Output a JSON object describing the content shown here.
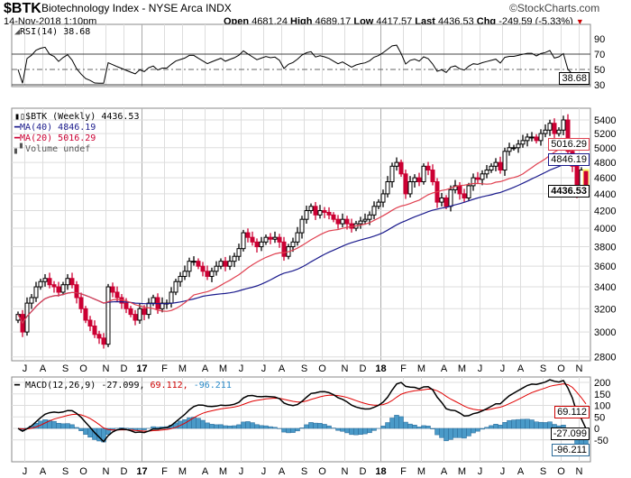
{
  "header": {
    "symbol": "$BTK",
    "name": "Biotechnology Index - NYSE Arca INDX",
    "brand": "©StockCharts.com",
    "datetime": "14-Nov-2018 1:10pm",
    "open_label": "Open",
    "open": "4681.24",
    "high_label": "High",
    "high": "4689.17",
    "low_label": "Low",
    "low": "4417.57",
    "last_label": "Last",
    "last": "4436.53",
    "chg_label": "Chg",
    "chg": "-249.59 (-5.33%)"
  },
  "rsi": {
    "legend": "RSI(14) 38.68",
    "value_tag": "38.68",
    "ticks": [
      "90",
      "70",
      "50",
      "30"
    ]
  },
  "price": {
    "legend": "$BTK (Weekly) 4436.53",
    "ma40": "MA(40) 4846.19",
    "ma20": "MA(20) 5016.29",
    "volume": "Volume undef",
    "tag_ma20": "5016.29",
    "tag_ma40": "4846.19",
    "tag_last": "4436.53"
  },
  "macd": {
    "legend_name": "MACD(12,26,9) -27.099,",
    "legend_signal": " 69.112,",
    "legend_hist": " -96.211",
    "tag_signal": "69.112",
    "tag_macd": "-27.099",
    "tag_hist": "-96.211",
    "ticks": [
      "200",
      "150",
      "100",
      "50",
      "0",
      "-50"
    ]
  },
  "colors": {
    "up": "#ffffff",
    "down": "#cc0033",
    "ma20": "#e04050",
    "ma40": "#1a1a8c",
    "hist": "#4a9ac8"
  },
  "chart_data": {
    "type": "candlestick",
    "title": "$BTK Biotechnology Index - NYSE Arca INDX (Weekly)",
    "scale": "log",
    "ylim": [
      2800,
      5500
    ],
    "yticks": [
      "5400",
      "5200",
      "5000",
      "4800",
      "4600",
      "4400",
      "4200",
      "4000",
      "3800",
      "3600",
      "3400",
      "3200",
      "3000",
      "2800"
    ],
    "months": [
      "J",
      "A",
      "S",
      "O",
      "N",
      "D",
      "17",
      "F",
      "M",
      "A",
      "M",
      "J",
      "J",
      "A",
      "S",
      "O",
      "N",
      "D",
      "18",
      "F",
      "M",
      "A",
      "M",
      "J",
      "J",
      "A",
      "S",
      "O",
      "N"
    ],
    "month_weeks": [
      3,
      7,
      12,
      16,
      21,
      25,
      29,
      34,
      38,
      43,
      47,
      51,
      56,
      60,
      65,
      69,
      74,
      78,
      82,
      87,
      91,
      96,
      100,
      104,
      109,
      113,
      118,
      122,
      126
    ],
    "weekly_close": [
      3150,
      3000,
      3250,
      3300,
      3400,
      3450,
      3480,
      3420,
      3400,
      3350,
      3420,
      3480,
      3420,
      3300,
      3200,
      3100,
      3050,
      2980,
      2950,
      2900,
      3400,
      3350,
      3300,
      3250,
      3200,
      3150,
      3100,
      3200,
      3150,
      3250,
      3300,
      3200,
      3250,
      3250,
      3350,
      3450,
      3500,
      3550,
      3650,
      3650,
      3600,
      3550,
      3500,
      3550,
      3600,
      3650,
      3600,
      3650,
      3700,
      3780,
      3950,
      3900,
      3850,
      3800,
      3850,
      3900,
      3880,
      3900,
      3850,
      3700,
      3800,
      3850,
      3950,
      4100,
      4200,
      4250,
      4150,
      4200,
      4180,
      4150,
      4100,
      4050,
      4100,
      4050,
      4000,
      4050,
      4080,
      4100,
      4150,
      4250,
      4300,
      4400,
      4550,
      4750,
      4800,
      4650,
      4400,
      4550,
      4600,
      4550,
      4750,
      4700,
      4550,
      4300,
      4350,
      4250,
      4450,
      4500,
      4400,
      4350,
      4500,
      4600,
      4580,
      4650,
      4700,
      4750,
      4800,
      4700,
      4950,
      5000,
      5000,
      5050,
      5100,
      5150,
      5150,
      5100,
      5200,
      5250,
      5350,
      5200,
      5250,
      5400,
      4950,
      4750,
      4400,
      4700,
      4436.53
    ],
    "first_open": 3100,
    "last_bar": {
      "open": 4681.24,
      "high": 4689.17,
      "low": 4417.57,
      "close": 4436.53
    }
  }
}
